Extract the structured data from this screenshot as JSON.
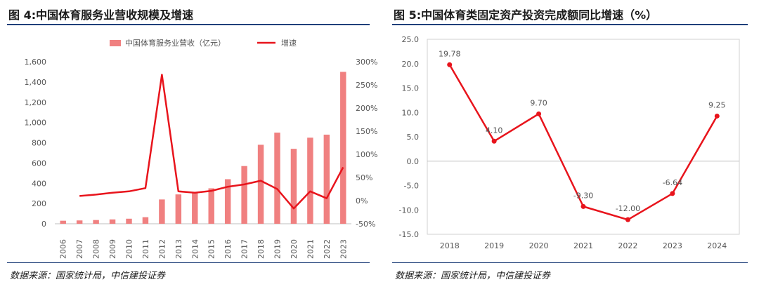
{
  "left": {
    "title": "图 4:中国体育服务业营收规模及增速",
    "source": "数据来源：国家统计局，中信建投证券",
    "chart_data": {
      "type": "bar",
      "categories": [
        "2006",
        "2007",
        "2008",
        "2009",
        "2010",
        "2011",
        "2012",
        "2013",
        "2014",
        "2015",
        "2016",
        "2017",
        "2018",
        "2019",
        "2020",
        "2021",
        "2022",
        "2023"
      ],
      "series": [
        {
          "name": "中国体育服务业营收（亿元）",
          "kind": "bar",
          "axis": "left",
          "color": "#f08080",
          "values": [
            30,
            33,
            37,
            43,
            50,
            65,
            240,
            290,
            310,
            350,
            440,
            570,
            780,
            900,
            740,
            850,
            880,
            1500
          ]
        },
        {
          "name": "增速",
          "kind": "line",
          "axis": "right",
          "color": "#e8141c",
          "values": [
            null,
            10,
            13,
            17,
            20,
            27,
            272,
            20,
            17,
            21,
            30,
            35,
            43,
            25,
            -17,
            20,
            5,
            72
          ]
        }
      ],
      "yleft": {
        "ticks": [
          "0",
          "200",
          "400",
          "600",
          "800",
          "1,000",
          "1,200",
          "1,400",
          "1,600"
        ],
        "ylim": [
          0,
          1600
        ]
      },
      "yright": {
        "ticks": [
          "-50%",
          "0%",
          "50%",
          "100%",
          "150%",
          "200%",
          "250%",
          "300%"
        ],
        "ylim": [
          -50,
          300
        ]
      },
      "legend": "top",
      "grid": false
    }
  },
  "right": {
    "title": "图 5:中国体育类固定资产投资完成额同比增速（%）",
    "source": "数据来源：国家统计局，中信建投证券",
    "chart_data": {
      "type": "line",
      "categories": [
        "2018",
        "2019",
        "2020",
        "2021",
        "2022",
        "2023",
        "2024"
      ],
      "series": [
        {
          "color": "#e8141c",
          "values": [
            19.78,
            4.1,
            9.7,
            -9.3,
            -12.0,
            -6.64,
            9.25
          ],
          "labels": [
            "19.78",
            "4.10",
            "9.70",
            "-9.30",
            "-12.00",
            "-6.64",
            "9.25"
          ]
        }
      ],
      "yticks": [
        "25.0",
        "20.0",
        "15.0",
        "10.0",
        "5.0",
        "0.0",
        "-5.0",
        "-10.0",
        "-15.0"
      ],
      "ylim": [
        -15,
        25
      ],
      "grid": false
    }
  }
}
